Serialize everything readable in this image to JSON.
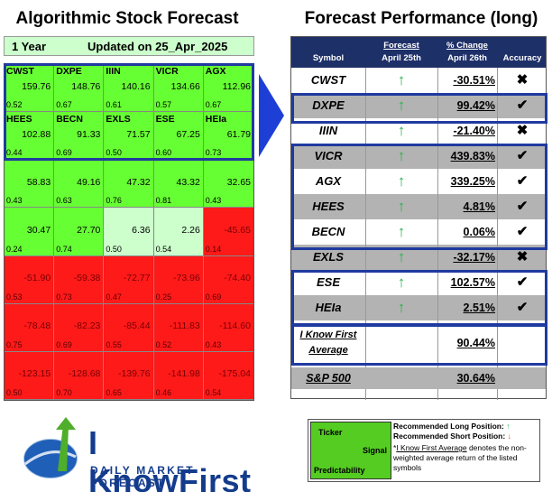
{
  "left_title": "Algorithmic Stock Forecast",
  "right_title": "Forecast Performance (long)",
  "updated_bar": {
    "period": "1 Year",
    "updated": "Updated on 25_Apr_2025"
  },
  "grid": [
    {
      "t": "CWST",
      "s": "159.76",
      "p": "0.52",
      "c": "green"
    },
    {
      "t": "DXPE",
      "s": "148.76",
      "p": "0.67",
      "c": "green"
    },
    {
      "t": "IIIN",
      "s": "140.16",
      "p": "0.61",
      "c": "green"
    },
    {
      "t": "VICR",
      "s": "134.66",
      "p": "0.57",
      "c": "green"
    },
    {
      "t": "AGX",
      "s": "112.96",
      "p": "0.67",
      "c": "green"
    },
    {
      "t": "HEES",
      "s": "102.88",
      "p": "0.44",
      "c": "green"
    },
    {
      "t": "BECN",
      "s": "91.33",
      "p": "0.69",
      "c": "green"
    },
    {
      "t": "EXLS",
      "s": "71.57",
      "p": "0.50",
      "c": "green"
    },
    {
      "t": "ESE",
      "s": "67.25",
      "p": "0.60",
      "c": "green"
    },
    {
      "t": "HEIa",
      "s": "61.79",
      "p": "0.73",
      "c": "green"
    },
    {
      "t": "",
      "s": "58.83",
      "p": "0.43",
      "c": "green"
    },
    {
      "t": "",
      "s": "49.16",
      "p": "0.63",
      "c": "green"
    },
    {
      "t": "",
      "s": "47.32",
      "p": "0.76",
      "c": "green"
    },
    {
      "t": "",
      "s": "43.32",
      "p": "0.81",
      "c": "green"
    },
    {
      "t": "",
      "s": "32.65",
      "p": "0.43",
      "c": "green"
    },
    {
      "t": "",
      "s": "30.47",
      "p": "0.24",
      "c": "green"
    },
    {
      "t": "",
      "s": "27.70",
      "p": "0.74",
      "c": "green"
    },
    {
      "t": "",
      "s": "6.36",
      "p": "0.50",
      "c": "lightgreen"
    },
    {
      "t": "",
      "s": "2.26",
      "p": "0.54",
      "c": "lightgreen"
    },
    {
      "t": "",
      "s": "-45.65",
      "p": "0.14",
      "c": "red"
    },
    {
      "t": "",
      "s": "-51.90",
      "p": "0.53",
      "c": "red"
    },
    {
      "t": "",
      "s": "-59.38",
      "p": "0.73",
      "c": "red"
    },
    {
      "t": "",
      "s": "-72.77",
      "p": "0.47",
      "c": "red"
    },
    {
      "t": "",
      "s": "-73.96",
      "p": "0.25",
      "c": "red"
    },
    {
      "t": "",
      "s": "-74.40",
      "p": "0.69",
      "c": "red"
    },
    {
      "t": "",
      "s": "-78.48",
      "p": "0.75",
      "c": "red"
    },
    {
      "t": "",
      "s": "-82.23",
      "p": "0.69",
      "c": "red"
    },
    {
      "t": "",
      "s": "-85.44",
      "p": "0.55",
      "c": "red"
    },
    {
      "t": "",
      "s": "-111.83",
      "p": "0.52",
      "c": "red"
    },
    {
      "t": "",
      "s": "-114.60",
      "p": "0.43",
      "c": "red"
    },
    {
      "t": "",
      "s": "-123.15",
      "p": "0.50",
      "c": "red"
    },
    {
      "t": "",
      "s": "-128.68",
      "p": "0.70",
      "c": "red"
    },
    {
      "t": "",
      "s": "-139.76",
      "p": "0.65",
      "c": "red"
    },
    {
      "t": "",
      "s": "-141.98",
      "p": "0.46",
      "c": "red"
    },
    {
      "t": "",
      "s": "-175.04",
      "p": "0.54",
      "c": "red"
    }
  ],
  "perf_header": {
    "symbol": "Symbol",
    "forecast": "Forecast",
    "forecast_date": "April 25th",
    "change": "% Change",
    "change_date": "April 26th",
    "accuracy": "Accuracy"
  },
  "perf_rows": [
    {
      "sym": "CWST",
      "fc": "↑",
      "chg": "-30.51%",
      "acc": "✖"
    },
    {
      "sym": "DXPE",
      "fc": "↑",
      "chg": "99.42%",
      "acc": "✔"
    },
    {
      "sym": "IIIN",
      "fc": "↑",
      "chg": "-21.40%",
      "acc": "✖"
    },
    {
      "sym": "VICR",
      "fc": "↑",
      "chg": "439.83%",
      "acc": "✔"
    },
    {
      "sym": "AGX",
      "fc": "↑",
      "chg": "339.25%",
      "acc": "✔"
    },
    {
      "sym": "HEES",
      "fc": "↑",
      "chg": "4.81%",
      "acc": "✔"
    },
    {
      "sym": "BECN",
      "fc": "↑",
      "chg": "0.06%",
      "acc": "✔"
    },
    {
      "sym": "EXLS",
      "fc": "↑",
      "chg": "-32.17%",
      "acc": "✖"
    },
    {
      "sym": "ESE",
      "fc": "↑",
      "chg": "102.57%",
      "acc": "✔"
    },
    {
      "sym": "HEIa",
      "fc": "↑",
      "chg": "2.51%",
      "acc": "✔"
    }
  ],
  "average": {
    "label_line1": "I Know First",
    "label_line2": "Average",
    "value": "90.44%"
  },
  "sp500": {
    "label": "S&P 500",
    "value": "30.64%"
  },
  "logo": {
    "brand": "I KnowFirst",
    "tagline": "DAILY MARKET FORECAST"
  },
  "legend": {
    "ticker": "Ticker",
    "signal": "Signal",
    "predictability": "Predictability",
    "long": "Recommended Long Position:",
    "long_arrow": "↑",
    "short": "Recommended Short Position:",
    "short_arrow": "↓",
    "note_link": "I Know First Average",
    "note_rest": " denotes the non-weighted average return of the listed symbols"
  }
}
